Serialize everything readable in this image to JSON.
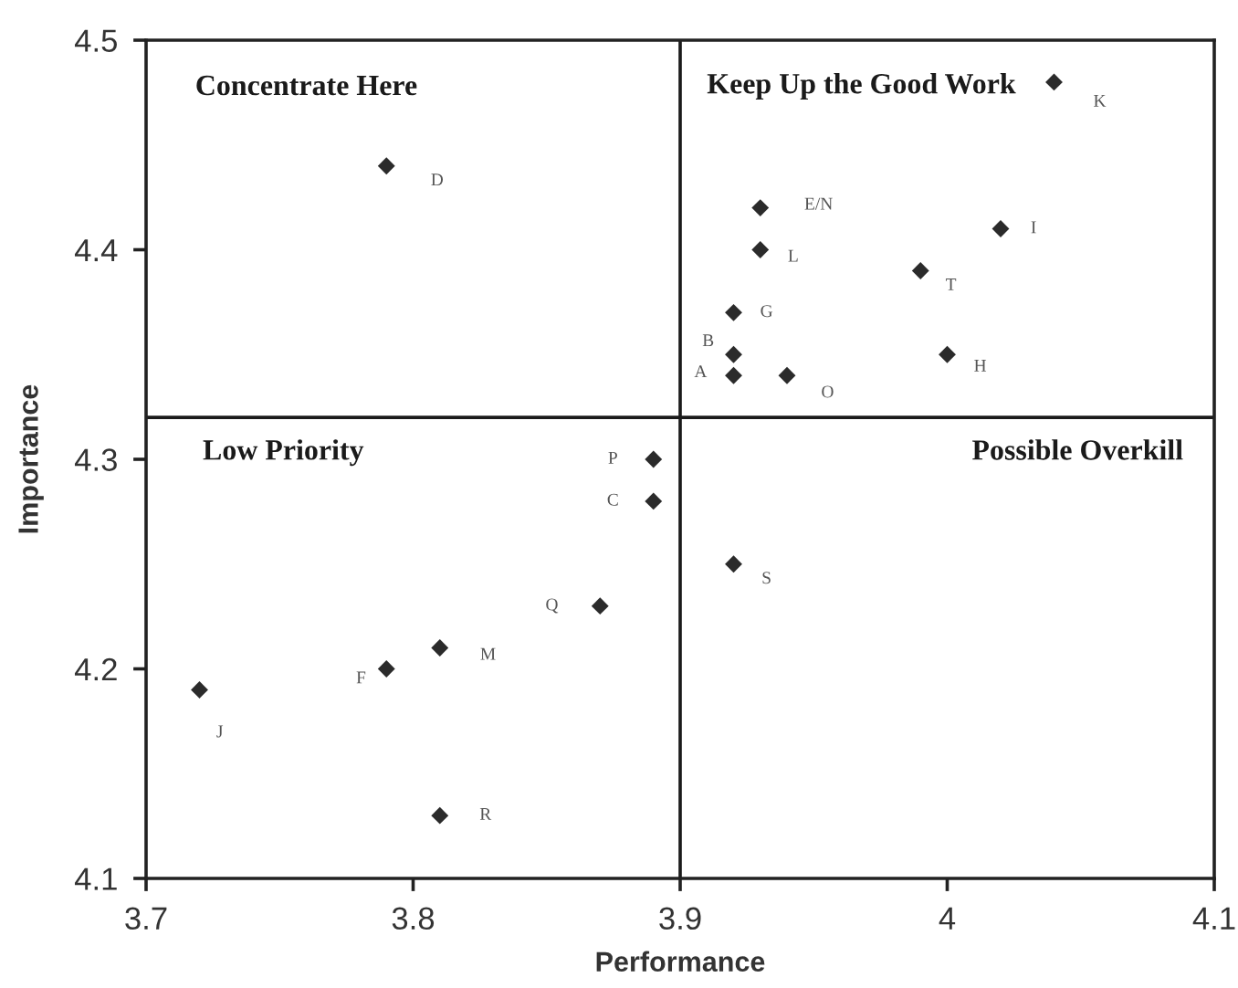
{
  "chart_data": {
    "type": "scatter",
    "xlabel": "Performance",
    "ylabel": "Importance",
    "xlim": [
      3.7,
      4.1
    ],
    "ylim": [
      4.1,
      4.5
    ],
    "xticks": [
      3.7,
      3.8,
      3.9,
      4,
      4.1
    ],
    "yticks": [
      4.1,
      4.2,
      4.3,
      4.4,
      4.5
    ],
    "marker": "diamond",
    "series": [
      {
        "color": "#2b2b2b",
        "x": [
          3.92,
          3.92,
          3.89,
          3.79,
          3.93,
          3.79,
          3.92,
          4.0,
          4.02,
          3.72,
          4.04,
          3.93,
          3.81,
          3.94,
          3.89,
          3.87,
          3.81,
          3.92,
          3.99
        ],
        "values": [
          4.34,
          4.35,
          4.28,
          4.44,
          4.42,
          4.2,
          4.37,
          4.35,
          4.41,
          4.19,
          4.48,
          4.4,
          4.21,
          4.34,
          4.3,
          4.23,
          4.13,
          4.25,
          4.39
        ]
      }
    ],
    "ref_lines": [
      {
        "axis": "x",
        "value": 3.9,
        "color": "#1a1a1a"
      },
      {
        "axis": "y",
        "value": 4.32,
        "color": "#1a1a1a"
      }
    ],
    "annotations": [
      "Concentrate Here",
      "Keep Up the Good Work",
      "Low Priority",
      "Possible Overkill",
      {
        "text": "A",
        "x": 3.92,
        "y": 4.34
      },
      {
        "text": "B",
        "x": 3.92,
        "y": 4.35
      },
      {
        "text": "C",
        "x": 3.89,
        "y": 4.28
      },
      {
        "text": "D",
        "x": 3.79,
        "y": 4.44
      },
      {
        "text": "E/N",
        "x": 3.93,
        "y": 4.42
      },
      {
        "text": "F",
        "x": 3.79,
        "y": 4.2
      },
      {
        "text": "G",
        "x": 3.92,
        "y": 4.37
      },
      {
        "text": "H",
        "x": 4.0,
        "y": 4.35
      },
      {
        "text": "I",
        "x": 4.02,
        "y": 4.41
      },
      {
        "text": "J",
        "x": 3.72,
        "y": 4.19
      },
      {
        "text": "K",
        "x": 4.04,
        "y": 4.48
      },
      {
        "text": "L",
        "x": 3.93,
        "y": 4.4
      },
      {
        "text": "M",
        "x": 3.81,
        "y": 4.21
      },
      {
        "text": "O",
        "x": 3.94,
        "y": 4.34
      },
      {
        "text": "P",
        "x": 3.89,
        "y": 4.3
      },
      {
        "text": "Q",
        "x": 3.87,
        "y": 4.23
      },
      {
        "text": "R",
        "x": 3.81,
        "y": 4.13
      },
      {
        "text": "S",
        "x": 3.92,
        "y": 4.25
      },
      {
        "text": "T",
        "x": 3.99,
        "y": 4.39
      }
    ]
  }
}
